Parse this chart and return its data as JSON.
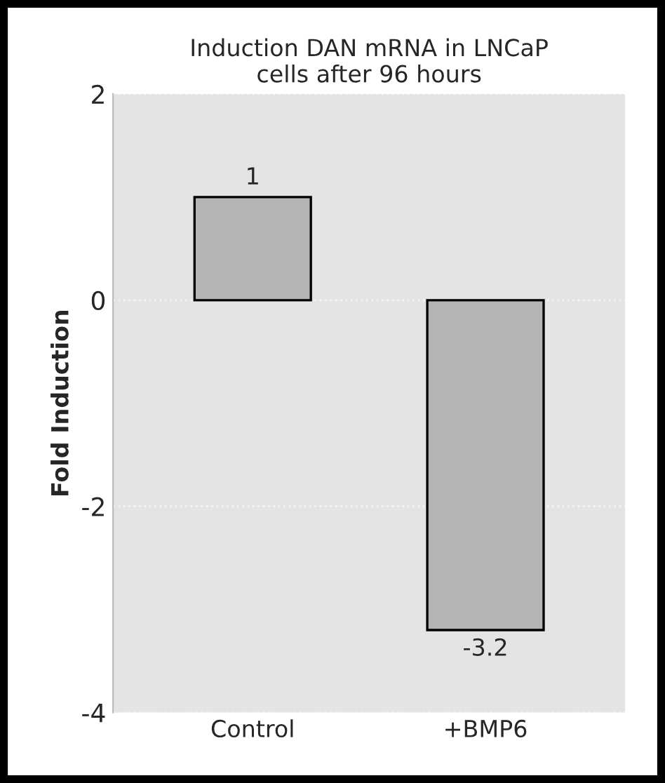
{
  "chart_data": {
    "type": "bar",
    "title": "Induction DAN mRNA in LNCaP\ncells after 96 hours",
    "ylabel": "Fold Induction",
    "categories": [
      "Control",
      "+BMP6"
    ],
    "series": [
      {
        "color": "#b4b4b4",
        "values": [
          1,
          -3.2
        ]
      }
    ],
    "ylim": [
      -4,
      2
    ],
    "yticks": [
      -4,
      -2,
      0,
      2
    ],
    "grid": "y",
    "data_labels": true
  }
}
